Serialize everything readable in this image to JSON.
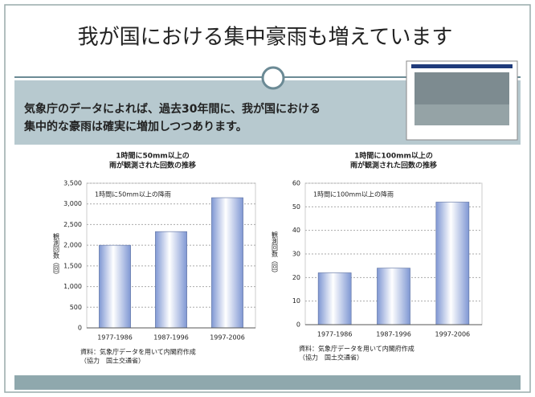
{
  "slide": {
    "title": "我が国における集中豪雨も増えています",
    "body": [
      "気象庁のデータによれば、過去30年間に、我が国における",
      "集中的な豪雨は確実に増加しつつあります。"
    ]
  },
  "chart_data": [
    {
      "type": "bar",
      "title": [
        "1時間に50mm以上の",
        "雨が観測された回数の推移"
      ],
      "annotation": "1時間に50mm以上の降雨",
      "y_label": "観測回数（回）",
      "categories": [
        "1977-1986",
        "1987-1996",
        "1997-2006"
      ],
      "values": [
        2000,
        2330,
        3150
      ],
      "color": "#7f97d3",
      "ylim": [
        0,
        3500
      ],
      "yticks": [
        0,
        {
          "value": 500,
          "label": "500"
        },
        {
          "value": 1000,
          "label": "1,000"
        },
        {
          "value": 1500,
          "label": "1,500"
        },
        {
          "value": 2000,
          "label": "2,000"
        },
        {
          "value": 2500,
          "label": "2,500"
        },
        {
          "value": 3000,
          "label": "3,000"
        },
        {
          "value": 3500,
          "label": "3,500"
        }
      ],
      "grid": true,
      "source": [
        "資料：気象庁データを用いて内閣府作成",
        "（協力　国土交通省）"
      ]
    },
    {
      "type": "bar",
      "title": [
        "1時間に100mm以上の",
        "雨が観測された回数の推移"
      ],
      "annotation": "1時間に100mm以上の降雨",
      "y_label": "観測回数（回）",
      "categories": [
        "1977-1986",
        "1987-1996",
        "1997-2006"
      ],
      "values": [
        22,
        24,
        52
      ],
      "color": "#7f97d3",
      "ylim": [
        0,
        60
      ],
      "yticks": [
        0,
        10,
        20,
        30,
        40,
        50,
        60
      ],
      "grid": true,
      "source": [
        "資料：気象庁データを用いて内閣府作成",
        "（協力　国土交通省）"
      ]
    }
  ]
}
